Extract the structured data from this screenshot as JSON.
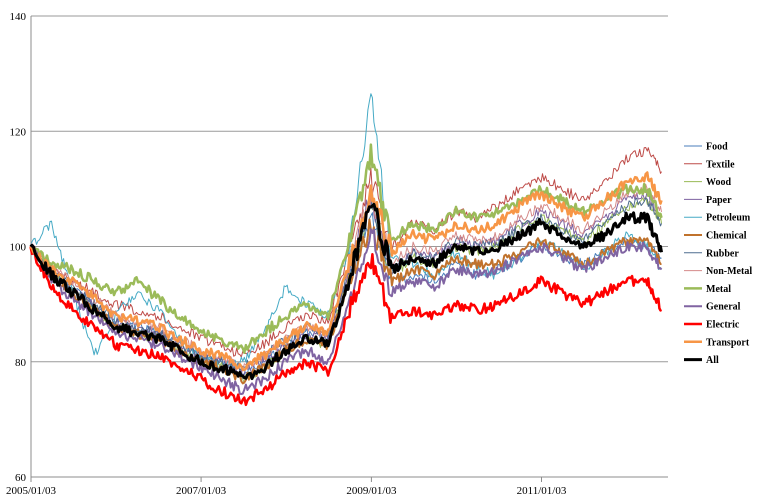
{
  "chart_data": {
    "type": "line",
    "title": "",
    "xlabel": "",
    "ylabel": "",
    "ylim": [
      60,
      140
    ],
    "yticks": [
      60,
      80,
      100,
      120,
      140
    ],
    "xlim": [
      "2005/01/03",
      "2012/06/29"
    ],
    "xticks": [
      "2005/01/03",
      "2007/01/03",
      "2009/01/03",
      "2011/01/03"
    ],
    "grid": "horizontal",
    "legend_position": "right",
    "x": [
      "2005/01",
      "2005/04",
      "2005/07",
      "2005/10",
      "2006/01",
      "2006/04",
      "2006/07",
      "2006/10",
      "2007/01",
      "2007/04",
      "2007/07",
      "2007/10",
      "2008/01",
      "2008/04",
      "2008/07",
      "2008/10",
      "2009/01",
      "2009/04",
      "2009/07",
      "2009/10",
      "2010/01",
      "2010/04",
      "2010/07",
      "2010/10",
      "2011/01",
      "2011/04",
      "2011/07",
      "2011/10",
      "2012/01",
      "2012/04",
      "2012/06"
    ],
    "series": [
      {
        "name": "Food",
        "color": "#4a7ebb",
        "width": 1,
        "values": [
          100,
          95,
          93,
          90,
          87,
          86,
          85,
          83,
          81,
          80,
          78,
          80,
          83,
          85,
          84,
          95,
          106,
          93,
          95,
          94,
          97,
          95,
          96,
          98,
          100,
          98,
          97,
          99,
          101,
          100,
          98
        ]
      },
      {
        "name": "Textile",
        "color": "#be4b48",
        "width": 1,
        "values": [
          100,
          96,
          94,
          92,
          90,
          89,
          88,
          86,
          84,
          83,
          81,
          83,
          86,
          88,
          87,
          99,
          112,
          100,
          104,
          103,
          106,
          105,
          107,
          110,
          112,
          110,
          108,
          111,
          115,
          117,
          113
        ]
      },
      {
        "name": "Wood",
        "color": "#98b954",
        "width": 1,
        "values": [
          100,
          95,
          92,
          89,
          86,
          85,
          84,
          82,
          80,
          79,
          77,
          79,
          82,
          84,
          83,
          95,
          108,
          95,
          98,
          97,
          100,
          99,
          100,
          103,
          105,
          103,
          101,
          104,
          107,
          108,
          104
        ]
      },
      {
        "name": "Paper",
        "color": "#7d60a0",
        "width": 1,
        "values": [
          100,
          95,
          92,
          90,
          87,
          86,
          85,
          83,
          81,
          80,
          78,
          80,
          83,
          85,
          84,
          96,
          109,
          96,
          99,
          98,
          101,
          100,
          101,
          104,
          106,
          104,
          102,
          105,
          108,
          109,
          105
        ]
      },
      {
        "name": "Petroleum",
        "color": "#46aac5",
        "width": 1,
        "values": [
          100,
          104,
          92,
          81,
          88,
          92,
          89,
          84,
          81,
          79,
          80,
          85,
          93,
          90,
          88,
          100,
          126,
          98,
          97,
          95,
          99,
          96,
          95,
          98,
          101,
          99,
          96,
          99,
          102,
          100,
          96
        ]
      },
      {
        "name": "Chemical",
        "color": "#c0722c",
        "width": 2,
        "values": [
          100,
          95,
          92,
          89,
          86,
          85,
          84,
          82,
          80,
          79,
          77,
          79,
          82,
          84,
          83,
          94,
          104,
          94,
          96,
          95,
          98,
          97,
          97,
          99,
          101,
          99,
          97,
          99,
          101,
          101,
          97
        ]
      },
      {
        "name": "Rubber",
        "color": "#4f6d8f",
        "width": 1,
        "values": [
          100,
          95,
          93,
          90,
          87,
          86,
          85,
          83,
          81,
          80,
          79,
          81,
          84,
          86,
          85,
          96,
          107,
          96,
          99,
          98,
          101,
          100,
          101,
          103,
          105,
          103,
          101,
          104,
          107,
          108,
          104
        ]
      },
      {
        "name": "Non-Metal",
        "color": "#d48a89",
        "width": 1,
        "values": [
          100,
          96,
          94,
          91,
          88,
          87,
          86,
          84,
          82,
          81,
          79,
          81,
          84,
          86,
          85,
          97,
          109,
          97,
          100,
          99,
          102,
          101,
          102,
          105,
          107,
          105,
          103,
          106,
          109,
          110,
          106
        ]
      },
      {
        "name": "Metal",
        "color": "#9bbb59",
        "width": 2.5,
        "values": [
          100,
          97,
          96,
          94,
          92,
          94,
          91,
          88,
          85,
          84,
          82,
          85,
          88,
          90,
          88,
          101,
          116,
          101,
          104,
          103,
          106,
          105,
          106,
          108,
          110,
          108,
          106,
          108,
          110,
          110,
          105
        ]
      },
      {
        "name": "General",
        "color": "#8064a2",
        "width": 2,
        "values": [
          100,
          94,
          91,
          88,
          85,
          84,
          83,
          81,
          79,
          77,
          75,
          77,
          80,
          82,
          80,
          91,
          103,
          92,
          94,
          93,
          96,
          95,
          96,
          98,
          100,
          98,
          96,
          98,
          100,
          100,
          96
        ]
      },
      {
        "name": "Electric",
        "color": "#ff0000",
        "width": 2.5,
        "values": [
          100,
          93,
          89,
          86,
          83,
          82,
          81,
          79,
          77,
          75,
          73,
          75,
          78,
          80,
          78,
          89,
          98,
          88,
          89,
          88,
          90,
          89,
          90,
          92,
          94,
          92,
          90,
          92,
          94,
          94,
          89
        ]
      },
      {
        "name": "Transport",
        "color": "#f79646",
        "width": 2.5,
        "values": [
          100,
          96,
          94,
          91,
          88,
          87,
          86,
          84,
          82,
          81,
          79,
          81,
          84,
          86,
          85,
          97,
          110,
          99,
          102,
          101,
          104,
          103,
          104,
          107,
          109,
          107,
          105,
          108,
          111,
          112,
          108
        ]
      },
      {
        "name": "All",
        "color": "#000000",
        "width": 3,
        "values": [
          100,
          95,
          92,
          89,
          86,
          85,
          84,
          82,
          80,
          79,
          77,
          79,
          82,
          84,
          83,
          94,
          108,
          96,
          98,
          97,
          100,
          99,
          100,
          102,
          104,
          102,
          100,
          102,
          105,
          105,
          99
        ]
      }
    ]
  }
}
